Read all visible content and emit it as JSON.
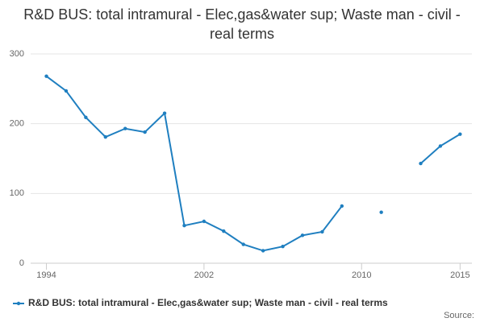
{
  "chart_data": {
    "type": "line",
    "title": "R&D BUS: total intramural - Elec,gas&water sup; Waste man - civil - real terms",
    "x": [
      1994,
      1995,
      1996,
      1997,
      1998,
      1999,
      2000,
      2001,
      2002,
      2003,
      2004,
      2005,
      2006,
      2007,
      2008,
      2009,
      2010,
      2011,
      2012,
      2013,
      2014,
      2015
    ],
    "series": [
      {
        "name": "R&D BUS: total intramural - Elec,gas&water sup; Waste man - civil - real terms",
        "color": "#1f7fc0",
        "values": [
          268,
          247,
          209,
          181,
          193,
          188,
          215,
          54,
          60,
          46,
          27,
          18,
          24,
          40,
          45,
          82,
          null,
          73,
          null,
          143,
          168,
          185
        ]
      }
    ],
    "xlim": [
      1993.2,
      2015.6
    ],
    "xticks": [
      1994,
      2002,
      2010,
      2015
    ],
    "ylim": [
      0,
      300
    ],
    "yticks": [
      0,
      100,
      200,
      300
    ],
    "grid": true,
    "legend": "bottom",
    "source": "Source:"
  }
}
